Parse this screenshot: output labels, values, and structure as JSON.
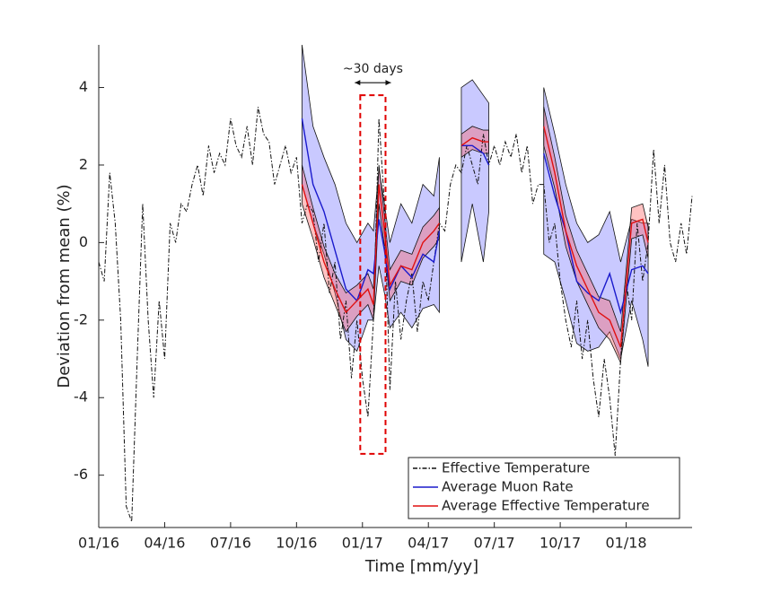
{
  "chart_data": {
    "type": "line",
    "xlabel": "Time [mm/yy]",
    "ylabel": "Deviation from mean (%)",
    "xlim": [
      0,
      27
    ],
    "ylim": [
      -7.35,
      5.1
    ],
    "xticks": [
      {
        "value": 0,
        "label": "01/16"
      },
      {
        "value": 3,
        "label": "04/16"
      },
      {
        "value": 6,
        "label": "07/16"
      },
      {
        "value": 9,
        "label": "10/16"
      },
      {
        "value": 12,
        "label": "01/17"
      },
      {
        "value": 15,
        "label": "04/17"
      },
      {
        "value": 18,
        "label": "07/17"
      },
      {
        "value": 21,
        "label": "10/17"
      },
      {
        "value": 24,
        "label": "01/18"
      }
    ],
    "yticks": [
      4,
      2,
      0,
      -2,
      -4,
      -6
    ],
    "legend": "lower right",
    "annotation": {
      "text": "~30 days",
      "color": "#e00000",
      "xlim": [
        11.9,
        13.05
      ],
      "ylim": [
        -5.45,
        3.8
      ]
    },
    "series": [
      {
        "name": "Effective Temperature",
        "color": "#111111",
        "dash": "dashdot",
        "x": [
          0,
          0.25,
          0.5,
          0.75,
          1,
          1.25,
          1.5,
          1.75,
          2,
          2.25,
          2.5,
          2.75,
          3,
          3.25,
          3.5,
          3.75,
          4,
          4.25,
          4.5,
          4.75,
          5,
          5.25,
          5.5,
          5.75,
          6,
          6.25,
          6.5,
          6.75,
          7,
          7.25,
          7.5,
          7.75,
          8,
          8.25,
          8.5,
          8.75,
          9,
          9.25,
          9.5,
          9.75,
          10,
          10.25,
          10.5,
          10.75,
          11,
          11.25,
          11.5,
          11.75,
          12,
          12.25,
          12.5,
          12.75,
          13,
          13.25,
          13.5,
          13.75,
          14,
          14.25,
          14.5,
          14.75,
          15,
          15.25,
          15.5,
          15.75,
          16,
          16.25,
          16.5,
          16.75,
          17,
          17.25,
          17.5,
          17.75,
          18,
          18.25,
          18.5,
          18.75,
          19,
          19.25,
          19.5,
          19.75,
          20,
          20.25,
          20.5,
          20.75,
          21,
          21.25,
          21.5,
          21.75,
          22,
          22.25,
          22.5,
          22.75,
          23,
          23.25,
          23.5,
          23.75,
          24,
          24.25,
          24.5,
          24.75,
          25,
          25.25,
          25.5,
          25.75,
          26,
          26.25,
          26.5,
          26.75,
          27
        ],
        "values": [
          -0.5,
          -1,
          1.8,
          0.5,
          -2,
          -6.8,
          -7.2,
          -3,
          1,
          -2,
          -4,
          -1.5,
          -3,
          0.5,
          0,
          1,
          0.8,
          1.5,
          2,
          1.2,
          2.5,
          1.8,
          2.3,
          2,
          3.2,
          2.5,
          2.2,
          3,
          2,
          3.5,
          2.8,
          2.6,
          1.5,
          2,
          2.5,
          1.8,
          2.2,
          0.5,
          1,
          0.8,
          -0.5,
          0.5,
          -1.3,
          -0.5,
          -2.5,
          -1.5,
          -3.5,
          -2,
          -3.5,
          -4.5,
          -2,
          3.2,
          1,
          -3.8,
          -1,
          -2.5,
          -1.5,
          -0.8,
          -2.3,
          -1,
          -1.5,
          -0.5,
          0.5,
          0.3,
          1.5,
          2,
          1.8,
          2.5,
          2,
          1.5,
          2.8,
          2,
          2.5,
          2,
          2.6,
          2.2,
          2.8,
          1.8,
          2.5,
          1,
          1.5,
          1.5,
          0,
          0.5,
          -1,
          -2,
          -2.7,
          -1.5,
          -3,
          -2,
          -3.5,
          -4.5,
          -3,
          -4,
          -5.5,
          -3,
          -1,
          -2,
          0.5,
          -1,
          0,
          2.4,
          0.5,
          2,
          0,
          -0.5,
          0.5,
          -0.3,
          1.2
        ]
      },
      {
        "name": "Average Muon Rate",
        "color": "#1a1acc",
        "band_color": "rgba(60,60,255,0.28)",
        "x": [
          9.25,
          9.75,
          10.25,
          10.75,
          11.25,
          11.75,
          12.25,
          12.5,
          12.75,
          13,
          13.25,
          13.75,
          14.25,
          14.75,
          15.25,
          15.5,
          16,
          16.5,
          17,
          17.5,
          17.75,
          19,
          20.25,
          20.75,
          21.25,
          21.75,
          22.25,
          22.75,
          23.25,
          23.75,
          24.25,
          24.75,
          25
        ],
        "values": [
          3.2,
          1.5,
          0.8,
          -0.2,
          -1.2,
          -1.5,
          -0.7,
          -0.8,
          0.6,
          -0.2,
          -1.2,
          -0.6,
          -0.9,
          -0.3,
          -0.5,
          0.3,
          null,
          2.5,
          2.5,
          2.3,
          2.0,
          null,
          2.3,
          1.2,
          0.3,
          -1,
          -1.3,
          -1.5,
          -0.8,
          -1.8,
          -0.7,
          -0.6,
          -0.8
        ],
        "lower": [
          1.5,
          0.5,
          -0.3,
          -1.3,
          -2.5,
          -2.8,
          -2,
          -2,
          -0.6,
          -1.3,
          -2.2,
          -1.8,
          -2.2,
          -1.7,
          -1.6,
          -1.8,
          null,
          -0.5,
          1,
          -0.5,
          0.8,
          null,
          -0.3,
          -0.5,
          -1.5,
          -2.6,
          -2.8,
          -2.7,
          -2.3,
          -3,
          -1.5,
          -2.5,
          -3.2
        ],
        "upper": [
          5.1,
          3,
          2.2,
          1.5,
          0.5,
          0,
          0.5,
          0.3,
          1.9,
          1,
          0,
          1,
          0.5,
          1.5,
          1.2,
          2.2,
          null,
          4,
          4.2,
          3.8,
          3.6,
          null,
          4,
          2.8,
          1.5,
          0.5,
          0,
          0.2,
          0.8,
          -0.5,
          0.6,
          0.5,
          0.5
        ]
      },
      {
        "name": "Average Effective Temperature",
        "color": "#e01010",
        "band_color": "rgba(255,80,80,0.35)",
        "x": [
          9.25,
          9.75,
          10.25,
          10.75,
          11.25,
          11.75,
          12.25,
          12.5,
          12.75,
          13,
          13.25,
          13.75,
          14.25,
          14.75,
          15.25,
          15.5,
          16,
          16.5,
          17,
          17.5,
          17.75,
          19,
          20.25,
          20.75,
          21.25,
          21.75,
          22.25,
          22.75,
          23.25,
          23.75,
          24.25,
          24.75,
          25
        ],
        "values": [
          1.5,
          0.5,
          -0.5,
          -1.2,
          -1.8,
          -1.5,
          -1.2,
          -1.6,
          1.5,
          0.3,
          -1.1,
          -0.6,
          -0.7,
          0,
          0.3,
          0.5,
          null,
          2.5,
          2.7,
          2.6,
          2.6,
          null,
          3,
          1.8,
          0.3,
          -0.6,
          -1.2,
          -1.8,
          -2,
          -2.7,
          0.5,
          0.6,
          0
        ],
        "lower": [
          1.0,
          0.1,
          -0.9,
          -1.6,
          -2.3,
          -1.9,
          -1.6,
          -2.0,
          1.0,
          -0.1,
          -1.5,
          -1.0,
          -1.1,
          -0.4,
          -0.1,
          0.1,
          null,
          2.2,
          2.4,
          2.3,
          2.3,
          null,
          2.5,
          1.4,
          -0.1,
          -1.0,
          -1.6,
          -2.2,
          -2.5,
          -3.1,
          0.1,
          0.2,
          -0.4
        ],
        "upper": [
          2.0,
          0.9,
          -0.1,
          -0.8,
          -1.3,
          -1.1,
          -0.8,
          -1.2,
          2.0,
          0.7,
          -0.7,
          -0.2,
          -0.3,
          0.4,
          0.7,
          0.9,
          null,
          2.8,
          3.0,
          2.9,
          2.9,
          null,
          3.5,
          2.2,
          0.7,
          -0.2,
          -0.8,
          -1.4,
          -1.5,
          -2.3,
          0.9,
          1.0,
          0.4
        ]
      }
    ]
  }
}
